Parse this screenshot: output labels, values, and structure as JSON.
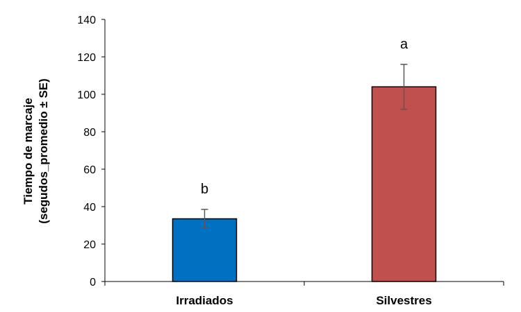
{
  "chart_data": {
    "type": "bar",
    "categories": [
      "Irradiados",
      "Silvestres"
    ],
    "values": [
      33.5,
      104
    ],
    "errors": [
      5,
      12
    ],
    "significance_letters": [
      "b",
      "a"
    ],
    "colors": [
      "#0070c0",
      "#c0504d"
    ],
    "ylabel_line1": "Tiempo de marcaje",
    "ylabel_line2": "(segudos_promedio ± SE)",
    "ylim": [
      0,
      140
    ],
    "yticks": [
      0,
      20,
      40,
      60,
      80,
      100,
      120,
      140
    ],
    "grid": false,
    "legend": "none"
  }
}
